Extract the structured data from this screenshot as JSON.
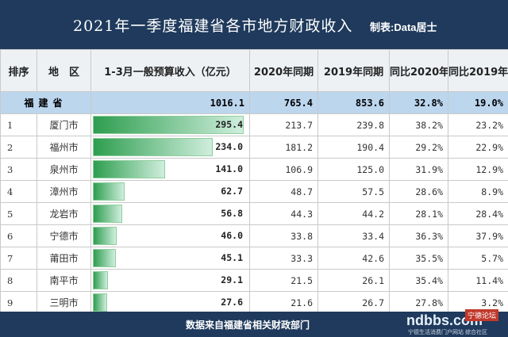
{
  "header": {
    "title": "2021年一季度福建省各市地方财政收入",
    "credit": "制表:Data居士"
  },
  "columns": [
    "排序",
    "地　区",
    "1-3月一般预算收入（亿元）",
    "2020年同期",
    "2019年同期",
    "同比2020年",
    "同比2019年"
  ],
  "province": {
    "name": "福建省",
    "q1_2021": "1016.1",
    "q1_2020": "765.4",
    "q1_2019": "853.6",
    "yoy_2020": "32.8%",
    "yoy_2019": "19.0%"
  },
  "footer": {
    "source": "数据来自福建省相关财政部门"
  },
  "watermark": {
    "logo": "ndbbs.com",
    "tag": "宁德论坛",
    "sub": "宁德生活消费门户网站 综合社区"
  },
  "chart_data": {
    "type": "table",
    "title": "2021年一季度福建省各市地方财政收入",
    "columns": [
      "排序",
      "地　区",
      "1-3月一般预算收入（亿元）",
      "2020年同期",
      "2019年同期",
      "同比2020年",
      "同比2019年"
    ],
    "rows": [
      {
        "rank": "1",
        "city": "厦门市",
        "q1_2021": "295.4",
        "q1_2020": "213.7",
        "q1_2019": "239.8",
        "yoy_2020": "38.2%",
        "yoy_2019": "23.2%"
      },
      {
        "rank": "2",
        "city": "福州市",
        "q1_2021": "234.0",
        "q1_2020": "181.2",
        "q1_2019": "190.4",
        "yoy_2020": "29.2%",
        "yoy_2019": "22.9%"
      },
      {
        "rank": "3",
        "city": "泉州市",
        "q1_2021": "141.0",
        "q1_2020": "106.9",
        "q1_2019": "125.0",
        "yoy_2020": "31.9%",
        "yoy_2019": "12.9%"
      },
      {
        "rank": "4",
        "city": "漳州市",
        "q1_2021": "62.7",
        "q1_2020": "48.7",
        "q1_2019": "57.5",
        "yoy_2020": "28.6%",
        "yoy_2019": "8.9%"
      },
      {
        "rank": "5",
        "city": "龙岩市",
        "q1_2021": "56.8",
        "q1_2020": "44.3",
        "q1_2019": "44.2",
        "yoy_2020": "28.1%",
        "yoy_2019": "28.4%"
      },
      {
        "rank": "6",
        "city": "宁德市",
        "q1_2021": "46.0",
        "q1_2020": "33.8",
        "q1_2019": "33.4",
        "yoy_2020": "36.3%",
        "yoy_2019": "37.9%"
      },
      {
        "rank": "7",
        "city": "莆田市",
        "q1_2021": "45.1",
        "q1_2020": "33.3",
        "q1_2019": "42.6",
        "yoy_2020": "35.5%",
        "yoy_2019": "5.7%"
      },
      {
        "rank": "8",
        "city": "南平市",
        "q1_2021": "29.1",
        "q1_2020": "21.5",
        "q1_2019": "26.1",
        "yoy_2020": "35.4%",
        "yoy_2019": "11.4%"
      },
      {
        "rank": "9",
        "city": "三明市",
        "q1_2021": "27.6",
        "q1_2020": "21.6",
        "q1_2019": "26.7",
        "yoy_2020": "27.8%",
        "yoy_2019": "3.2%"
      }
    ],
    "bar_column": "q1_2021",
    "bar_color": "#2e9e4f",
    "header_color": "#1f3a5c",
    "province_row_color": "#bcd6ee"
  }
}
